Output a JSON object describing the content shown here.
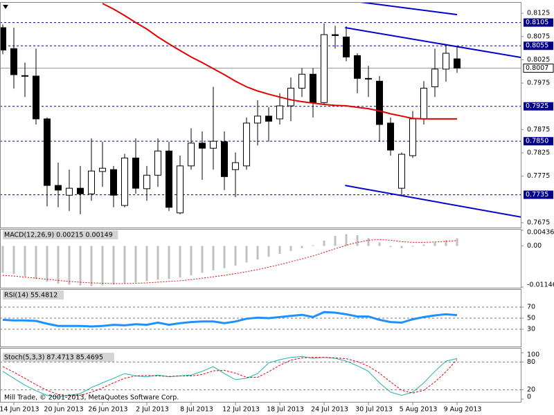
{
  "chart_data": [
    {
      "type": "candlestick",
      "categories": [
        null,
        "14 Jun 2013",
        null,
        null,
        null,
        "20 Jun 2013",
        null,
        null,
        null,
        "26 Jun 2013",
        null,
        null,
        null,
        "2 Jul 2013",
        null,
        null,
        null,
        "8 Jul 2013",
        null,
        null,
        null,
        "12 Jul 2013",
        null,
        null,
        null,
        "18 Jul 2013",
        null,
        null,
        null,
        "24 Jul 2013",
        null,
        null,
        null,
        "30 Jul 2013",
        null,
        null,
        null,
        "5 Aug 2013",
        null,
        null,
        null,
        "9 Aug 2013"
      ],
      "open": [
        0.8094,
        0.8049,
        0.799,
        0.799,
        0.7898,
        0.7755,
        0.7734,
        0.7749,
        0.7737,
        0.7785,
        0.7789,
        0.7712,
        0.7814,
        0.7748,
        0.7777,
        0.7829,
        0.7696,
        0.7797,
        0.7846,
        0.7835,
        0.7849,
        0.7789,
        0.7797,
        0.7889,
        0.7904,
        0.7898,
        0.7926,
        0.7964,
        0.7994,
        0.7933,
        0.8079,
        0.8074,
        0.8034,
        0.7985,
        0.7979,
        0.7889,
        0.7749,
        0.7819,
        0.7898,
        0.7967,
        0.8005,
        0.8027
      ],
      "high": [
        0.8101,
        0.8094,
        0.8019,
        0.8049,
        0.7901,
        0.7804,
        0.7789,
        0.7797,
        0.7856,
        0.7849,
        0.7797,
        0.7823,
        0.7856,
        0.7797,
        0.7856,
        0.7849,
        0.7819,
        0.7878,
        0.7871,
        0.7967,
        0.7871,
        0.7826,
        0.7901,
        0.7938,
        0.7923,
        0.7953,
        0.7987,
        0.8007,
        0.8007,
        0.8103,
        0.8098,
        0.8097,
        0.8039,
        0.8012,
        0.799,
        0.7901,
        0.7826,
        0.7915,
        0.7979,
        0.8049,
        0.8058,
        0.8053
      ],
      "low": [
        0.8037,
        0.7963,
        0.7945,
        0.7886,
        0.771,
        0.7708,
        0.77,
        0.7693,
        0.7722,
        0.7752,
        0.7708,
        0.7708,
        0.7737,
        0.7722,
        0.7752,
        0.77,
        0.7693,
        0.7789,
        0.7767,
        0.7789,
        0.7745,
        0.773,
        0.7789,
        0.7841,
        0.7849,
        0.7886,
        0.7893,
        0.7945,
        0.7901,
        0.793,
        0.8049,
        0.8022,
        0.7953,
        0.7945,
        0.7849,
        0.7819,
        0.7733,
        0.7814,
        0.7886,
        0.7945,
        0.7978,
        0.7997
      ],
      "close": [
        0.8046,
        0.7993,
        0.7991,
        0.7898,
        0.7755,
        0.7745,
        0.7749,
        0.7737,
        0.7786,
        0.7792,
        0.7734,
        0.7814,
        0.7749,
        0.7777,
        0.7829,
        0.7708,
        0.7797,
        0.7846,
        0.7835,
        0.785,
        0.7774,
        0.7804,
        0.7889,
        0.7904,
        0.7893,
        0.7926,
        0.7964,
        0.7994,
        0.7933,
        0.8079,
        0.8077,
        0.8031,
        0.7985,
        0.7984,
        0.7886,
        0.7831,
        0.7822,
        0.7898,
        0.7964,
        0.8005,
        0.8039,
        0.8007
      ],
      "up_color": "#ffffff",
      "down_color": "#000000",
      "moving_average": {
        "color": "#e00000",
        "values": [
          null,
          null,
          null,
          null,
          null,
          null,
          null,
          null,
          null,
          0.8146,
          0.8134,
          0.812,
          0.8105,
          0.8091,
          0.8074,
          0.8059,
          0.8045,
          0.8031,
          0.8019,
          0.8006,
          0.7993,
          0.7979,
          0.7967,
          0.7958,
          0.7951,
          0.7945,
          0.7939,
          0.7935,
          0.7932,
          0.7929,
          0.7927,
          0.7926,
          0.7923,
          0.792,
          0.7915,
          0.7909,
          0.7904,
          0.7899,
          0.7898,
          0.7898,
          0.7898,
          0.7898
        ]
      },
      "trendline_color": "#0000cd",
      "trendlines": [
        {
          "x": [
            32.25,
            41
          ],
          "y": [
            0.8149,
            0.8122
          ]
        },
        {
          "x": [
            30.9,
            47.25
          ],
          "y": [
            0.8094,
            0.8028
          ]
        },
        {
          "x": [
            30.9,
            47.25
          ],
          "y": [
            0.7755,
            0.7685
          ]
        }
      ],
      "level_color": "#00008b",
      "levels": [
        0.8105,
        0.8055,
        0.7925,
        {
          "value": 0.785,
          "label": "0.7850"
        },
        0.7735
      ],
      "last_price": 0.8007,
      "ylim": [
        0.7666,
        0.8146
      ],
      "yticks": [
        0.8125,
        0.8075,
        0.8025,
        0.7975,
        0.7875,
        0.7825,
        0.7775,
        0.7675
      ]
    },
    {
      "type": "macd",
      "label": "MACD(12,26,9) 0.00215 0.00149",
      "histogram_color": "#c0c0c0",
      "signal_color": "#e00000",
      "histogram": [
        -0.0075,
        -0.0078,
        -0.0085,
        -0.0092,
        -0.01,
        -0.0105,
        -0.0108,
        -0.011,
        -0.0112,
        -0.011,
        -0.0108,
        -0.0105,
        -0.0102,
        -0.0098,
        -0.0094,
        -0.0092,
        -0.0088,
        -0.0082,
        -0.0075,
        -0.0068,
        -0.0062,
        -0.0055,
        -0.0046,
        -0.0038,
        -0.003,
        -0.0022,
        -0.0014,
        -0.0006,
        0.0002,
        0.0015,
        0.0028,
        0.0033,
        0.003,
        0.0022,
        0.001,
        -0.0003,
        -0.0006,
        -0.0002,
        0.0004,
        0.001,
        0.0016,
        0.00215
      ],
      "signal": [
        -0.0082,
        -0.0084,
        -0.0087,
        -0.009,
        -0.0093,
        -0.0096,
        -0.0099,
        -0.0101,
        -0.0103,
        -0.0104,
        -0.0105,
        -0.0105,
        -0.0104,
        -0.0103,
        -0.0101,
        -0.0099,
        -0.0097,
        -0.0094,
        -0.009,
        -0.0086,
        -0.0082,
        -0.0077,
        -0.0072,
        -0.0066,
        -0.0059,
        -0.0052,
        -0.0044,
        -0.0036,
        -0.0028,
        -0.0018,
        -0.0008,
        0.0002,
        0.001,
        0.0016,
        0.0018,
        0.0016,
        0.0012,
        0.001,
        0.001,
        0.0011,
        0.0013,
        0.00149
      ],
      "ylim": [
        -0.01146,
        0.00436
      ],
      "yticks": [
        0.00436,
        {
          "value": 0,
          "label": "0.00"
        },
        -0.01146
      ]
    },
    {
      "type": "line",
      "label": "RSI(14) 55.4812",
      "color": "#1e90ff",
      "values": [
        47,
        46,
        46,
        45,
        40,
        36,
        36,
        36,
        35,
        36,
        38,
        37,
        39,
        38,
        42,
        38,
        41,
        43,
        44,
        44,
        41,
        44,
        49,
        51,
        50,
        52,
        54,
        56,
        52,
        61,
        60,
        57,
        53,
        53,
        47,
        43,
        42,
        48,
        52,
        55,
        57,
        55.4812
      ],
      "levels": [
        70,
        50,
        30
      ],
      "ylim": [
        0,
        100
      ],
      "yticks": [
        70,
        50,
        30
      ]
    },
    {
      "type": "stochastic",
      "label": "Stoch(5,3,3) 87.4713 85.4695",
      "annotation": "Mill Trade, © 2001-2013, MetaQuotes Software Corp.",
      "main_color": "#20b2aa",
      "signal_color": "#e00000",
      "main": [
        60,
        45,
        30,
        18,
        8,
        4,
        8,
        12,
        25,
        35,
        45,
        55,
        50,
        48,
        52,
        48,
        50,
        52,
        60,
        70,
        55,
        42,
        45,
        55,
        78,
        85,
        90,
        92,
        88,
        90,
        88,
        82,
        72,
        60,
        35,
        15,
        8,
        15,
        35,
        60,
        82,
        87.4713
      ],
      "signal": [
        70,
        58,
        45,
        31,
        19,
        10,
        7,
        8,
        15,
        24,
        35,
        45,
        50,
        51,
        50,
        49,
        50,
        50,
        53,
        61,
        62,
        56,
        47,
        47,
        59,
        73,
        84,
        89,
        90,
        90,
        89,
        87,
        81,
        71,
        56,
        37,
        19,
        13,
        19,
        37,
        59,
        85.4695
      ],
      "levels": [
        80,
        20
      ],
      "ylim": [
        0,
        100
      ],
      "yticks": [
        100,
        80,
        20,
        0
      ]
    }
  ]
}
